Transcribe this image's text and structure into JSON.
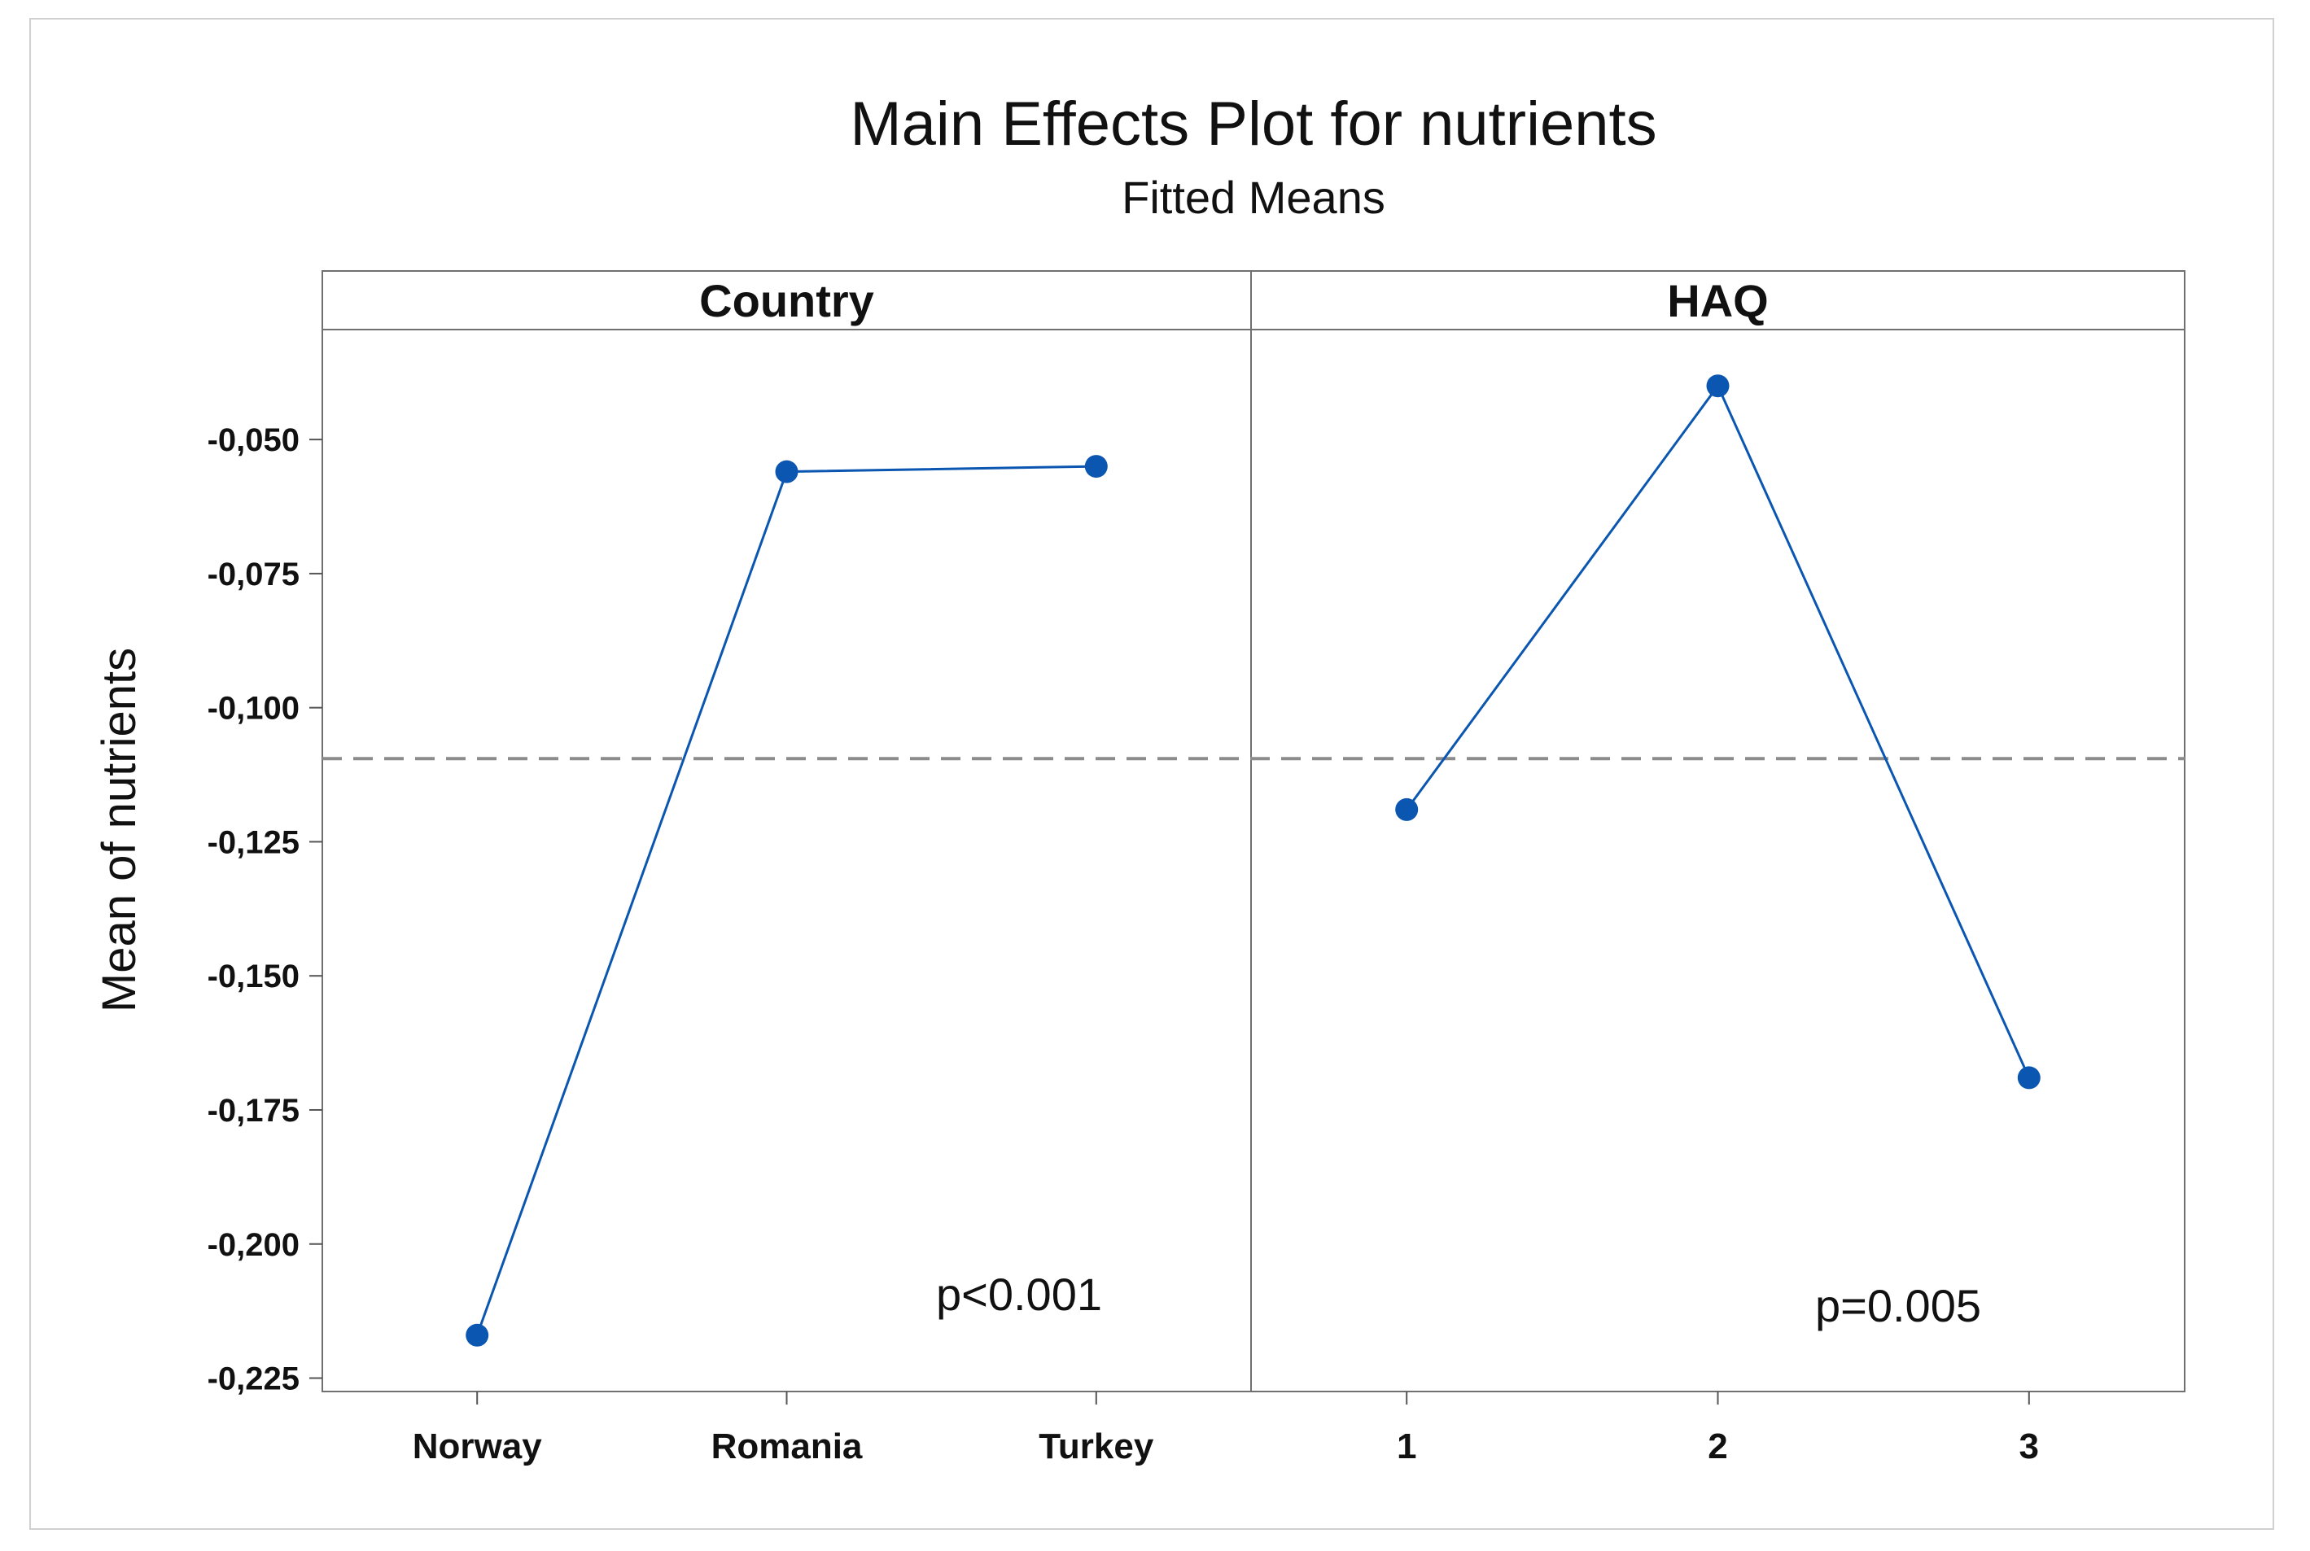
{
  "chart_data": {
    "type": "line",
    "title": "Main Effects Plot for nutrients",
    "subtitle": "Fitted Means",
    "ylabel": "Mean of nutrients",
    "ylim": [
      -0.2275,
      -0.0295
    ],
    "yticks": [
      -0.05,
      -0.075,
      -0.1,
      -0.125,
      -0.15,
      -0.175,
      -0.2,
      -0.225
    ],
    "ytick_labels": [
      "-0,050",
      "-0,075",
      "-0,100",
      "-0,125",
      "-0,150",
      "-0,175",
      "-0,200",
      "-0,225"
    ],
    "reference_line": -0.1095,
    "series_color": "#0a56b0",
    "reference_color": "#8c8c8c",
    "panels": [
      {
        "title": "Country",
        "categories": [
          "Norway",
          "Romania",
          "Turkey"
        ],
        "values": [
          -0.217,
          -0.056,
          -0.055
        ],
        "annotation": "p<0.001"
      },
      {
        "title": "HAQ",
        "categories": [
          "1",
          "2",
          "3"
        ],
        "values": [
          -0.119,
          -0.04,
          -0.169
        ],
        "annotation": "p=0.005"
      }
    ]
  }
}
